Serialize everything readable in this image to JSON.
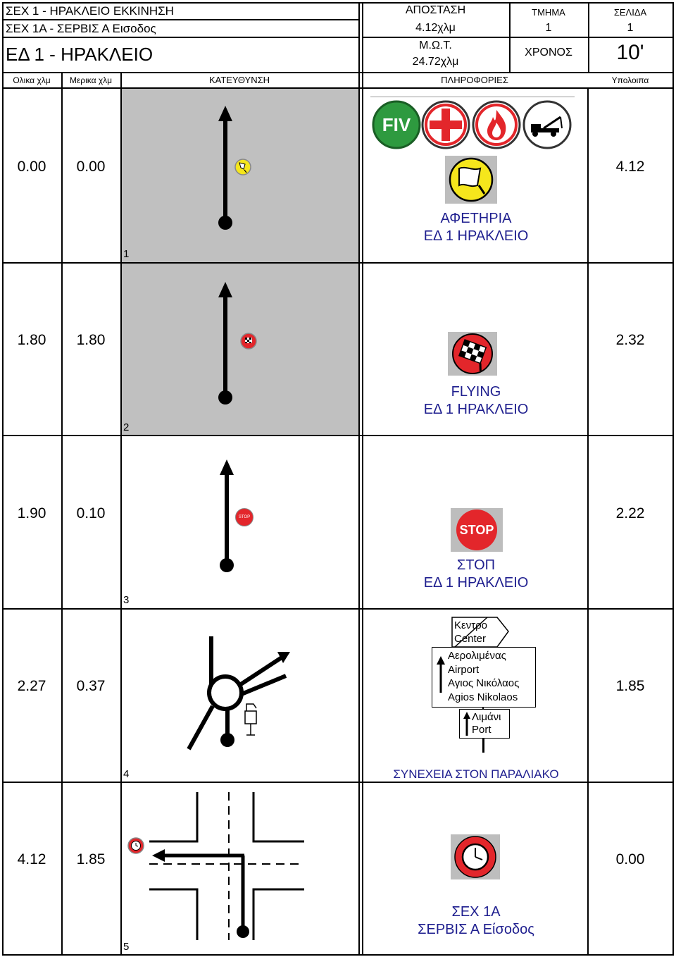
{
  "header": {
    "line1": "ΣΕΧ 1 - ΗΡΑΚΛΕΙΟ ΕΚΚΙΝΗΣΗ",
    "line2": "ΣΕΧ 1Α - ΣΕΡΒΙΣ Α Εισοδος",
    "title": "ΕΔ 1 - ΗΡΑΚΛΕΙΟ",
    "distance_label": "ΑΠΟΣΤΑΣΗ",
    "distance_value": "4.12χλμ",
    "avg_speed_label": "Μ.Ω.Τ.",
    "avg_speed_value": "24.72χλμ",
    "section_label": "ΤΜΗΜΑ",
    "section_value": "1",
    "page_label": "ΣΕΛΙΔΑ",
    "page_value": "1",
    "time_label": "ΧΡΟΝΟΣ",
    "time_value": "10'"
  },
  "columns": {
    "total": "Ολικα χλμ",
    "partial": "Μερικα χλμ",
    "direction": "ΚΑΤΕΥΘΥΝΣΗ",
    "info": "ΠΛΗΡΟΦΟΡΙΕΣ",
    "remaining": "Υπολοιπα"
  },
  "safety_icons": [
    "FIV",
    "medical-cross-icon",
    "fire-icon",
    "tow-truck-icon"
  ],
  "rows": [
    {
      "no": "1",
      "total": "0.00",
      "partial": "0.00",
      "remaining": "4.12",
      "icon": "start-flag-icon",
      "info_line1": "ΑΦΕΤΗΡΙΑ",
      "info_line2": "ΕΔ 1  ΗΡΑΚΛΕΙΟ"
    },
    {
      "no": "2",
      "total": "1.80",
      "partial": "1.80",
      "remaining": "2.32",
      "icon": "checkered-flag-icon",
      "info_line1": "FLYING",
      "info_line2": "ΕΔ 1  ΗΡΑΚΛΕΙΟ"
    },
    {
      "no": "3",
      "total": "1.90",
      "partial": "0.10",
      "remaining": "2.22",
      "icon": "stop-sign-icon",
      "stop_text": "STOP",
      "info_line1": "ΣΤΟΠ",
      "info_line2": "ΕΔ 1  ΗΡΑΚΛΕΙΟ"
    },
    {
      "no": "4",
      "total": "2.27",
      "partial": "0.37",
      "remaining": "1.85",
      "icon": "road-sign",
      "sign_top_line1": "Κεντρο",
      "sign_top_line2": "Center",
      "sign_mid": [
        "Αερολιμένας",
        "Airport",
        "Αγιος Νικόλαος",
        "Agios Nikolaos"
      ],
      "sign_bottom_line1": "Λιμάνι",
      "sign_bottom_line2": "Port",
      "info_footer": "ΣΥΝΕΧΕΙΑ ΣΤΟΝ ΠΑΡΑΛΙΑΚΟ"
    },
    {
      "no": "5",
      "total": "4.12",
      "partial": "1.85",
      "remaining": "0.00",
      "icon": "clock-icon",
      "info_line1": "ΣΕΧ 1Α",
      "info_line2": "ΣΕΡΒΙΣ Α Είσοδος"
    }
  ],
  "colors": {
    "info_text": "#1f1f8f",
    "gray_band": "#c0c0c0",
    "red_icon": "#e3262b",
    "green_icon": "#2e9a3f",
    "yellow_flag": "#f5e61c"
  }
}
